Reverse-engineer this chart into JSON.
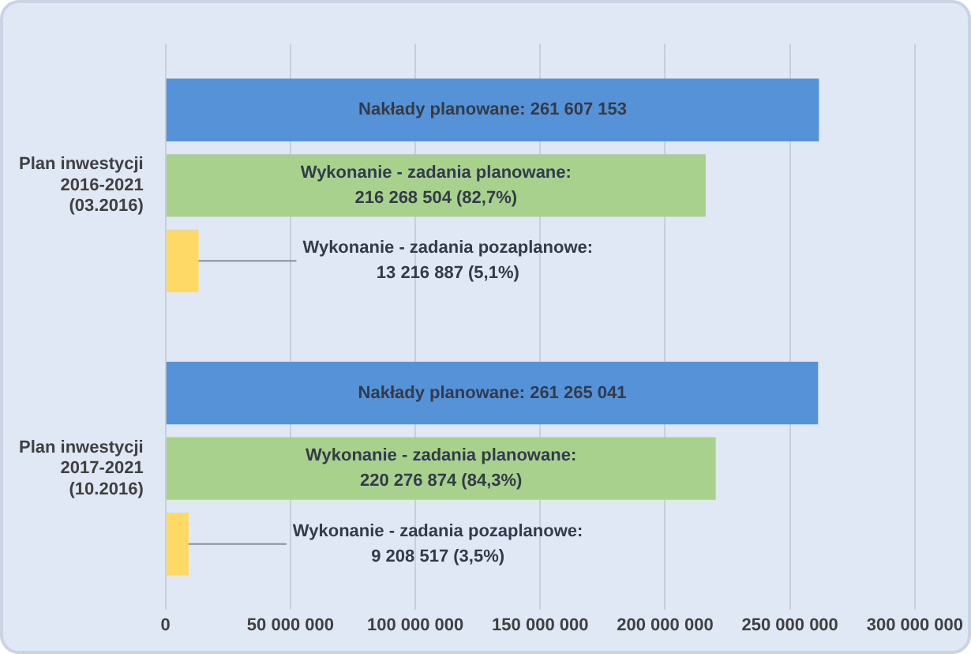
{
  "chart_data": {
    "type": "bar",
    "orientation": "horizontal",
    "categories": [
      "Plan inwestycji\n2016-2021\n(03.2016)",
      "Plan inwestycji\n2017-2021\n(10.2016)"
    ],
    "series": [
      {
        "color": "#5592d8",
        "values": [
          261607153,
          261265041
        ],
        "value_labels": [
          "Nakłady planowane: 261 607 153",
          "Nakłady planowane: 261 265 041"
        ]
      },
      {
        "color": "#a9d18e",
        "values": [
          216268504,
          220276874
        ],
        "value_labels": [
          "Wykonanie - zadania planowane:\n216 268 504 (82,7%)",
          "Wykonanie - zadania planowane:\n220 276 874 (84,3%)"
        ]
      },
      {
        "color": "#ffd966",
        "values": [
          13216887,
          9208517
        ],
        "value_labels": [
          "Wykonanie - zadania pozaplanowe:\n13 216 887 (5,1%)",
          "Wykonanie - zadania pozaplanowe:\n9 208 517 (3,5%)"
        ]
      }
    ],
    "xlim": [
      0,
      300000000
    ],
    "xticks": [
      0,
      {
        "value": 50000000,
        "label": "50 000 000"
      },
      {
        "value": 100000000,
        "label": "100 000 000"
      },
      {
        "value": 150000000,
        "label": "150 000 000"
      },
      {
        "value": 200000000,
        "label": "200 000 000"
      },
      {
        "value": 250000000,
        "label": "250 000 000"
      },
      {
        "value": 300000000,
        "label": "300 000 000"
      }
    ],
    "grid": "x",
    "legend": false
  }
}
